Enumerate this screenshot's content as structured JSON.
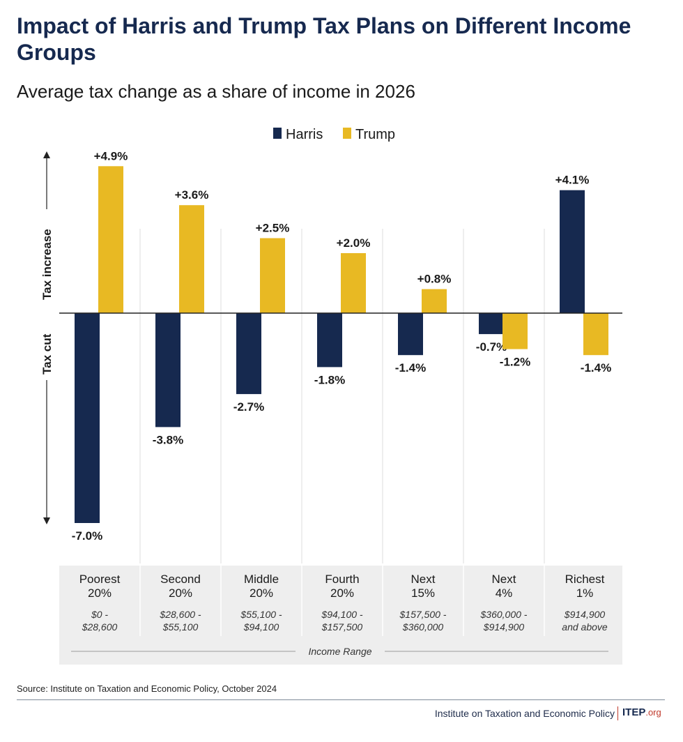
{
  "header": {
    "title": "Impact of Harris and Trump Tax Plans on Different Income Groups",
    "subtitle": "Average tax change as a share of income in 2026"
  },
  "chart_data": {
    "type": "bar",
    "categories": [
      {
        "group": [
          "Poorest",
          "20%"
        ],
        "range": [
          "$0 -",
          "$28,600"
        ]
      },
      {
        "group": [
          "Second",
          "20%"
        ],
        "range": [
          "$28,600 -",
          "$55,100"
        ]
      },
      {
        "group": [
          "Middle",
          "20%"
        ],
        "range": [
          "$55,100 -",
          "$94,100"
        ]
      },
      {
        "group": [
          "Fourth",
          "20%"
        ],
        "range": [
          "$94,100 -",
          "$157,500"
        ]
      },
      {
        "group": [
          "Next",
          "15%"
        ],
        "range": [
          "$157,500 -",
          "$360,000"
        ]
      },
      {
        "group": [
          "Next",
          "4%"
        ],
        "range": [
          "$360,000 -",
          "$914,900"
        ]
      },
      {
        "group": [
          "Richest",
          "1%"
        ],
        "range": [
          "$914,900",
          "and above"
        ]
      }
    ],
    "series": [
      {
        "name": "Harris",
        "color": "#16294f",
        "values": [
          -7.0,
          -3.8,
          -2.7,
          -1.8,
          -1.4,
          -0.7,
          4.1
        ],
        "labels": [
          "-7.0%",
          "-3.8%",
          "-2.7%",
          "-1.8%",
          "-1.4%",
          "-0.7%",
          "+4.1%"
        ]
      },
      {
        "name": "Trump",
        "color": "#e8b923",
        "values": [
          4.9,
          3.6,
          2.5,
          2.0,
          0.8,
          -1.2,
          -1.4
        ],
        "labels": [
          "+4.9%",
          "+3.6%",
          "+2.5%",
          "+2.0%",
          "+0.8%",
          "-1.2%",
          "-1.4%"
        ]
      }
    ],
    "ylim": [
      -7.0,
      4.9
    ],
    "y_axis_annotations": {
      "up": "Tax increase",
      "down": "Tax cut"
    },
    "x_axis_caption": "Income Range",
    "legend_position": "top-center",
    "grid": false
  },
  "footer": {
    "source": "Source: Institute on Taxation and Economic Policy, October 2024",
    "org": "Institute on Taxation and Economic Policy",
    "logo_main": "ITEP",
    "logo_suffix": ".org"
  }
}
